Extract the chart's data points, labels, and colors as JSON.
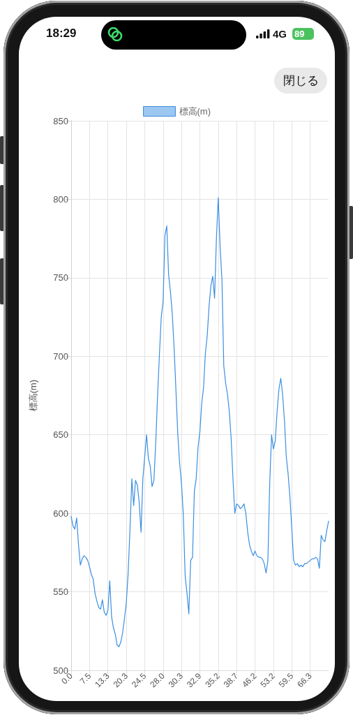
{
  "chart_data": {
    "type": "line",
    "categories": [
      "0.0",
      null,
      null,
      null,
      null,
      null,
      null,
      null,
      null,
      null,
      "7.5",
      null,
      null,
      null,
      null,
      null,
      null,
      null,
      null,
      null,
      "13.3",
      null,
      null,
      null,
      null,
      null,
      null,
      null,
      null,
      null,
      "20.3",
      null,
      null,
      null,
      null,
      null,
      null,
      null,
      null,
      null,
      "24.5",
      null,
      null,
      null,
      null,
      null,
      null,
      null,
      null,
      null,
      "28.0",
      null,
      null,
      null,
      null,
      null,
      null,
      null,
      null,
      null,
      "30.3",
      null,
      null,
      null,
      null,
      null,
      null,
      null,
      null,
      null,
      "32.9",
      null,
      null,
      null,
      null,
      null,
      null,
      null,
      null,
      null,
      "35.2",
      null,
      null,
      null,
      null,
      null,
      null,
      null,
      null,
      null,
      "38.7",
      null,
      null,
      null,
      null,
      null,
      null,
      null,
      null,
      null,
      "46.2",
      null,
      null,
      null,
      null,
      null,
      null,
      null,
      null,
      null,
      "53.2",
      null,
      null,
      null,
      null,
      null,
      null,
      null,
      null,
      null,
      "59.5",
      null,
      null,
      null,
      null,
      null,
      null,
      null,
      null,
      null,
      "66.3",
      null,
      null,
      null,
      null,
      null,
      null,
      null,
      null,
      null,
      null
    ],
    "series": [
      {
        "name": "標高(m)",
        "color": "#3a8fe2",
        "values": [
          598,
          592,
          590,
          597,
          580,
          567,
          571,
          573,
          572,
          570,
          566,
          561,
          558,
          549,
          544,
          540,
          539,
          545,
          537,
          535,
          538,
          557,
          534,
          527,
          523,
          516,
          515,
          518,
          524,
          533,
          543,
          562,
          590,
          622,
          605,
          621,
          618,
          607,
          588,
          622,
          636,
          650,
          635,
          630,
          617,
          621,
          645,
          675,
          701,
          725,
          735,
          777,
          783,
          752,
          741,
          727,
          705,
          678,
          650,
          632,
          619,
          599,
          560,
          549,
          536,
          570,
          572,
          614,
          622,
          642,
          652,
          670,
          680,
          702,
          713,
          732,
          745,
          751,
          737,
          775,
          801,
          770,
          749,
          694,
          683,
          676,
          665,
          648,
          622,
          600,
          606,
          605,
          603,
          604,
          606,
          600,
          588,
          580,
          576,
          573,
          576,
          573,
          572,
          572,
          571,
          568,
          562,
          570,
          620,
          650,
          641,
          646,
          665,
          679,
          686,
          676,
          659,
          636,
          625,
          610,
          590,
          570,
          567,
          568,
          566,
          567,
          566,
          568,
          568,
          569,
          570,
          571,
          571,
          572,
          571,
          565,
          586,
          583,
          582,
          589,
          595
        ]
      }
    ],
    "ylabel": "標高(m)",
    "ylim": [
      500,
      850
    ],
    "yticks": [
      500,
      550,
      600,
      650,
      700,
      750,
      800,
      850
    ],
    "grid": true,
    "legend": "top",
    "marker": "none",
    "line_style": "solid",
    "annotations": [
      "18:29",
      "4G",
      "89",
      "閉じる"
    ]
  }
}
